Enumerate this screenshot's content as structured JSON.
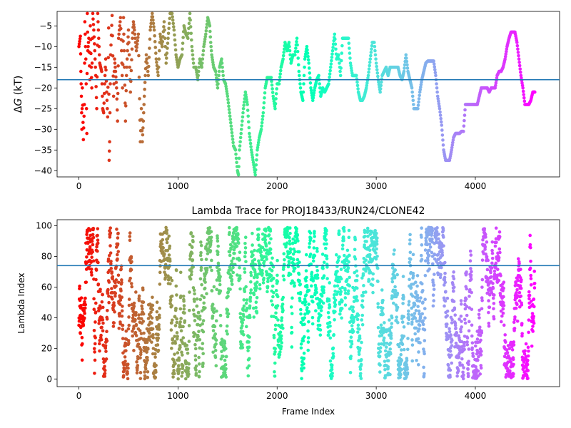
{
  "chart_data": [
    {
      "type": "scatter",
      "title": "",
      "xlabel": "",
      "ylabel_prefix": "Δ",
      "ylabel_italic": "G",
      "ylabel_suffix": " (kT)",
      "xlim": [
        -220,
        4850
      ],
      "ylim": [
        -41.5,
        -1.5
      ],
      "xticks": [
        0,
        1000,
        2000,
        3000,
        4000
      ],
      "yticks": [
        -40,
        -35,
        -30,
        -25,
        -20,
        -15,
        -10,
        -5
      ],
      "reference_line_y": -18,
      "reference_line_color": "#1f77b4",
      "colormap": "rainbow",
      "max_frame": 4600,
      "points": [
        [
          0,
          -10
        ],
        [
          15,
          -7.5
        ],
        [
          20,
          -16
        ],
        [
          25,
          -22
        ],
        [
          30,
          -30
        ],
        [
          35,
          -20
        ],
        [
          45,
          -32.5
        ],
        [
          55,
          -24
        ],
        [
          60,
          -4
        ],
        [
          70,
          -13
        ],
        [
          80,
          -31
        ],
        [
          85,
          -2
        ],
        [
          90,
          -11
        ],
        [
          100,
          -8
        ],
        [
          110,
          -18
        ],
        [
          115,
          -5
        ],
        [
          125,
          -15
        ],
        [
          130,
          -20
        ],
        [
          140,
          -2
        ],
        [
          150,
          -6
        ],
        [
          160,
          -11
        ],
        [
          170,
          -17
        ],
        [
          180,
          -25
        ],
        [
          190,
          -2
        ],
        [
          200,
          -8
        ],
        [
          210,
          -14
        ],
        [
          230,
          -16
        ],
        [
          240,
          -25
        ],
        [
          250,
          -26
        ],
        [
          260,
          -19
        ],
        [
          270,
          -13
        ],
        [
          280,
          -21
        ],
        [
          290,
          -27
        ],
        [
          300,
          -5.5
        ],
        [
          305,
          -37.5
        ],
        [
          310,
          -33
        ],
        [
          320,
          -12
        ],
        [
          335,
          -2.5
        ],
        [
          350,
          -22
        ],
        [
          360,
          -13
        ],
        [
          370,
          -16
        ],
        [
          380,
          -20
        ],
        [
          390,
          -28
        ],
        [
          400,
          -8
        ],
        [
          420,
          -3
        ],
        [
          430,
          -11
        ],
        [
          440,
          -20
        ],
        [
          450,
          -3
        ],
        [
          460,
          -15
        ],
        [
          470,
          -28
        ],
        [
          480,
          -17
        ],
        [
          490,
          -11
        ],
        [
          500,
          -6
        ],
        [
          520,
          -21
        ],
        [
          540,
          -8
        ],
        [
          550,
          -4
        ],
        [
          560,
          -6
        ],
        [
          580,
          -11
        ],
        [
          600,
          -7
        ],
        [
          620,
          -33
        ],
        [
          630,
          -25
        ],
        [
          640,
          -33
        ],
        [
          650,
          -28
        ],
        [
          660,
          -22
        ],
        [
          670,
          -17
        ],
        [
          680,
          -12
        ],
        [
          700,
          -17
        ],
        [
          720,
          -6
        ],
        [
          740,
          -2
        ],
        [
          760,
          -6
        ],
        [
          780,
          -13
        ],
        [
          800,
          -17
        ],
        [
          820,
          -7
        ],
        [
          840,
          -10
        ],
        [
          860,
          -4
        ],
        [
          880,
          -14
        ],
        [
          900,
          -8
        ],
        [
          920,
          -2
        ],
        [
          940,
          -2
        ],
        [
          960,
          -6
        ],
        [
          980,
          -12
        ],
        [
          1000,
          -15
        ],
        [
          1020,
          -13
        ],
        [
          1040,
          -12
        ],
        [
          1060,
          -5
        ],
        [
          1080,
          -7
        ],
        [
          1100,
          -8
        ],
        [
          1120,
          -2
        ],
        [
          1140,
          -10
        ],
        [
          1160,
          -15
        ],
        [
          1180,
          -15
        ],
        [
          1200,
          -18
        ],
        [
          1220,
          -13
        ],
        [
          1240,
          -15
        ],
        [
          1260,
          -10
        ],
        [
          1280,
          -7
        ],
        [
          1300,
          -3
        ],
        [
          1320,
          -5
        ],
        [
          1330,
          -9
        ],
        [
          1340,
          -12
        ],
        [
          1360,
          -15
        ],
        [
          1380,
          -16
        ],
        [
          1400,
          -20
        ],
        [
          1420,
          -15
        ],
        [
          1440,
          -13
        ],
        [
          1460,
          -18
        ],
        [
          1480,
          -19
        ],
        [
          1500,
          -22
        ],
        [
          1520,
          -26
        ],
        [
          1540,
          -30
        ],
        [
          1560,
          -34
        ],
        [
          1580,
          -35
        ],
        [
          1600,
          -40
        ],
        [
          1610,
          -41
        ],
        [
          1620,
          -35
        ],
        [
          1640,
          -30
        ],
        [
          1660,
          -25
        ],
        [
          1680,
          -21
        ],
        [
          1700,
          -24
        ],
        [
          1720,
          -31
        ],
        [
          1740,
          -35
        ],
        [
          1760,
          -38
        ],
        [
          1780,
          -41
        ],
        [
          1800,
          -35
        ],
        [
          1820,
          -32
        ],
        [
          1840,
          -30
        ],
        [
          1860,
          -26
        ],
        [
          1880,
          -20
        ],
        [
          1900,
          -17.5
        ],
        [
          1920,
          -17.5
        ],
        [
          1940,
          -17.5
        ],
        [
          1960,
          -22
        ],
        [
          1980,
          -25
        ],
        [
          2000,
          -19
        ],
        [
          2020,
          -19
        ],
        [
          2040,
          -15
        ],
        [
          2060,
          -13
        ],
        [
          2080,
          -9
        ],
        [
          2100,
          -11
        ],
        [
          2120,
          -9
        ],
        [
          2140,
          -14
        ],
        [
          2160,
          -12
        ],
        [
          2180,
          -12
        ],
        [
          2200,
          -8
        ],
        [
          2220,
          -16
        ],
        [
          2240,
          -21
        ],
        [
          2260,
          -23
        ],
        [
          2280,
          -13
        ],
        [
          2300,
          -10
        ],
        [
          2320,
          -14
        ],
        [
          2340,
          -20
        ],
        [
          2360,
          -23
        ],
        [
          2380,
          -20
        ],
        [
          2400,
          -18
        ],
        [
          2420,
          -17
        ],
        [
          2440,
          -22
        ],
        [
          2460,
          -20
        ],
        [
          2480,
          -21
        ],
        [
          2500,
          -20
        ],
        [
          2520,
          -19
        ],
        [
          2540,
          -15
        ],
        [
          2560,
          -11
        ],
        [
          2580,
          -7
        ],
        [
          2600,
          -13
        ],
        [
          2620,
          -12
        ],
        [
          2640,
          -17
        ],
        [
          2660,
          -8
        ],
        [
          2680,
          -8
        ],
        [
          2700,
          -8
        ],
        [
          2720,
          -8
        ],
        [
          2740,
          -14
        ],
        [
          2760,
          -17
        ],
        [
          2780,
          -17
        ],
        [
          2800,
          -17
        ],
        [
          2820,
          -21
        ],
        [
          2840,
          -23
        ],
        [
          2860,
          -23
        ],
        [
          2880,
          -22
        ],
        [
          2900,
          -20
        ],
        [
          2920,
          -17
        ],
        [
          2940,
          -13
        ],
        [
          2960,
          -9
        ],
        [
          2980,
          -9
        ],
        [
          3000,
          -14
        ],
        [
          3020,
          -18
        ],
        [
          3040,
          -21
        ],
        [
          3060,
          -17
        ],
        [
          3080,
          -16
        ],
        [
          3100,
          -15
        ],
        [
          3120,
          -17
        ],
        [
          3140,
          -15
        ],
        [
          3160,
          -15
        ],
        [
          3180,
          -15
        ],
        [
          3200,
          -15
        ],
        [
          3220,
          -15
        ],
        [
          3240,
          -17
        ],
        [
          3260,
          -18
        ],
        [
          3280,
          -16
        ],
        [
          3300,
          -12
        ],
        [
          3320,
          -16
        ],
        [
          3340,
          -18
        ],
        [
          3360,
          -20
        ],
        [
          3380,
          -25
        ],
        [
          3400,
          -25
        ],
        [
          3420,
          -25
        ],
        [
          3440,
          -21
        ],
        [
          3460,
          -18
        ],
        [
          3480,
          -16
        ],
        [
          3500,
          -14
        ],
        [
          3520,
          -13.5
        ],
        [
          3540,
          -13.5
        ],
        [
          3560,
          -13.5
        ],
        [
          3580,
          -13.5
        ],
        [
          3600,
          -17
        ],
        [
          3620,
          -22
        ],
        [
          3640,
          -25
        ],
        [
          3660,
          -29
        ],
        [
          3680,
          -35
        ],
        [
          3700,
          -37.5
        ],
        [
          3720,
          -37.5
        ],
        [
          3740,
          -37.5
        ],
        [
          3760,
          -35
        ],
        [
          3780,
          -32
        ],
        [
          3800,
          -31
        ],
        [
          3820,
          -31
        ],
        [
          3840,
          -31
        ],
        [
          3860,
          -30.5
        ],
        [
          3880,
          -30.5
        ],
        [
          3900,
          -24
        ],
        [
          3920,
          -24
        ],
        [
          3940,
          -24
        ],
        [
          3960,
          -24
        ],
        [
          3980,
          -24
        ],
        [
          4000,
          -24
        ],
        [
          4020,
          -24
        ],
        [
          4040,
          -22
        ],
        [
          4060,
          -20
        ],
        [
          4080,
          -20
        ],
        [
          4100,
          -20
        ],
        [
          4120,
          -20
        ],
        [
          4140,
          -21
        ],
        [
          4160,
          -20
        ],
        [
          4180,
          -20
        ],
        [
          4200,
          -20
        ],
        [
          4220,
          -17
        ],
        [
          4240,
          -16
        ],
        [
          4260,
          -16
        ],
        [
          4280,
          -15
        ],
        [
          4300,
          -13
        ],
        [
          4320,
          -10
        ],
        [
          4340,
          -8
        ],
        [
          4360,
          -6.5
        ],
        [
          4380,
          -6.5
        ],
        [
          4400,
          -6.5
        ],
        [
          4420,
          -9
        ],
        [
          4440,
          -13
        ],
        [
          4460,
          -17
        ],
        [
          4480,
          -20
        ],
        [
          4500,
          -24
        ],
        [
          4520,
          -24
        ],
        [
          4540,
          -24
        ],
        [
          4560,
          -23
        ],
        [
          4580,
          -21
        ],
        [
          4600,
          -21
        ]
      ]
    },
    {
      "type": "scatter",
      "title": "Lambda Trace for PROJ18433/RUN24/CLONE42",
      "xlabel": "Frame Index",
      "ylabel": "Lambda Index",
      "xlim": [
        -220,
        4850
      ],
      "ylim": [
        -5,
        104
      ],
      "xticks": [
        0,
        1000,
        2000,
        3000,
        4000
      ],
      "yticks": [
        0,
        20,
        40,
        60,
        80,
        100
      ],
      "reference_line_y": 74,
      "reference_line_color": "#1f77b4",
      "colormap": "rainbow",
      "max_frame": 4600,
      "lambda_min": 0,
      "lambda_max": 99,
      "seed": 18433
    }
  ]
}
